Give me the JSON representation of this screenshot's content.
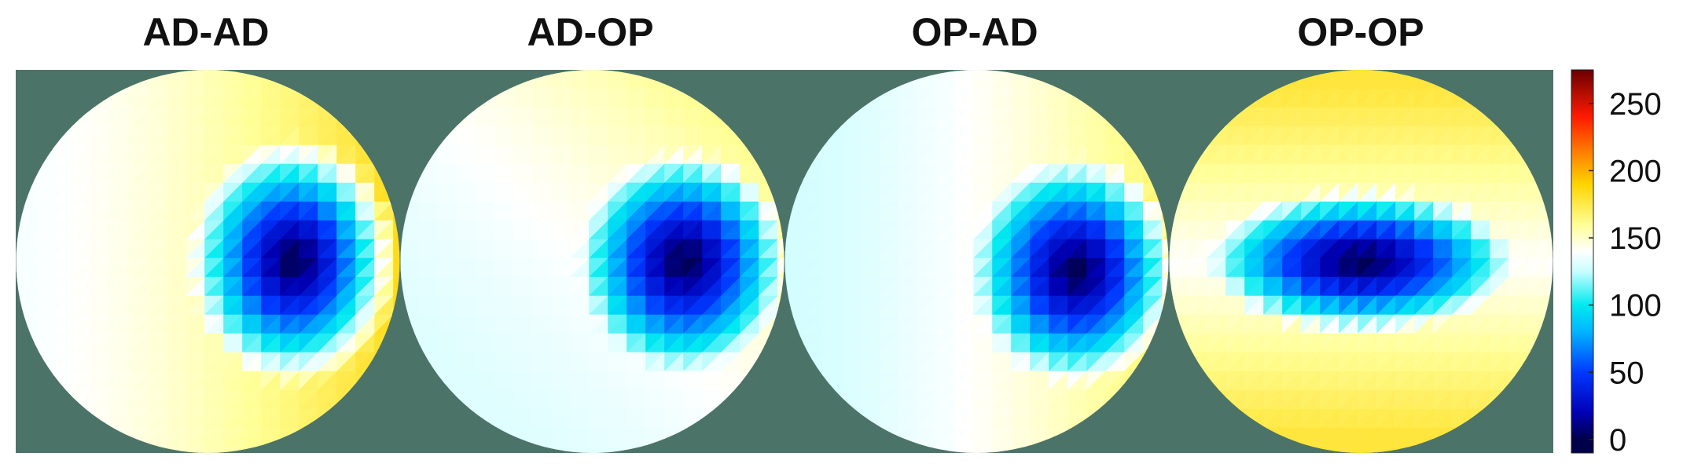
{
  "chart_data": {
    "type": "heatmap",
    "description_kind": "polar heat maps",
    "background_color": "#4c7367",
    "colormap": {
      "name": "jet-like diverging",
      "stops": [
        {
          "value": 0,
          "color": "#00004a"
        },
        {
          "value": 20,
          "color": "#0000b4"
        },
        {
          "value": 50,
          "color": "#0038ff"
        },
        {
          "value": 80,
          "color": "#00b4ff"
        },
        {
          "value": 100,
          "color": "#00eaf0"
        },
        {
          "value": 125,
          "color": "#c8fdff"
        },
        {
          "value": 140,
          "color": "#ffffff"
        },
        {
          "value": 160,
          "color": "#ffff96"
        },
        {
          "value": 190,
          "color": "#ffd400"
        },
        {
          "value": 215,
          "color": "#ff7a00"
        },
        {
          "value": 240,
          "color": "#ff1a00"
        },
        {
          "value": 275,
          "color": "#6a0000"
        }
      ]
    },
    "colorbar": {
      "range": [
        -10,
        275
      ],
      "ticks": [
        0,
        50,
        100,
        150,
        200,
        250
      ],
      "tick_labels": [
        "0",
        "50",
        "100",
        "150",
        "200",
        "250"
      ]
    },
    "panels": [
      {
        "title": "AD-AD",
        "rim_value": 150,
        "rim_variation": {
          "hot_side": "right",
          "hot_value": 185,
          "cool_value": 138
        },
        "minimum": {
          "value": 0,
          "center": [
            0.45,
            0.0
          ],
          "radius_x": 0.55,
          "radius_y": 0.65
        }
      },
      {
        "title": "AD-OP",
        "rim_value": 150,
        "rim_variation": {
          "hot_side": "top-right",
          "hot_value": 172,
          "cool_value": 130
        },
        "minimum": {
          "value": 0,
          "center": [
            0.48,
            0.0
          ],
          "radius_x": 0.55,
          "radius_y": 0.58
        }
      },
      {
        "title": "OP-AD",
        "rim_value": 150,
        "rim_variation": {
          "hot_side": "right",
          "hot_value": 168,
          "cool_value": 128
        },
        "minimum": {
          "value": 0,
          "center": [
            0.52,
            0.05
          ],
          "radius_x": 0.55,
          "radius_y": 0.6
        }
      },
      {
        "title": "OP-OP",
        "rim_value": 158,
        "rim_variation": {
          "hot_side": "top-bottom",
          "hot_value": 178,
          "cool_value": 140
        },
        "minimum": {
          "value": 0,
          "center": [
            0.0,
            0.0
          ],
          "radius_x": 0.8,
          "radius_y": 0.38
        }
      }
    ]
  }
}
